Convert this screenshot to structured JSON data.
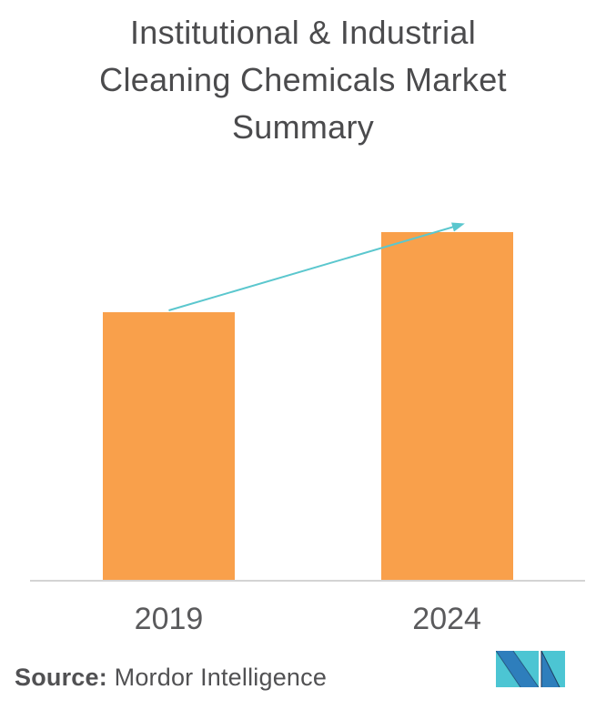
{
  "title": "Institutional & Industrial\nCleaning Chemicals Market\nSummary",
  "source": {
    "label": "Source:",
    "text": "Mordor Intelligence"
  },
  "logo": {
    "name": "Mordor Intelligence logo",
    "teal": "#4cc5d3",
    "blue": "#2e7ebc",
    "dark": "#16294a"
  },
  "chart_data": {
    "type": "bar",
    "title": "Institutional & Industrial Cleaning Chemicals Market Summary",
    "categories": [
      "2019",
      "2024"
    ],
    "values": [
      77,
      100
    ],
    "value_scale": "relative bar heights; no numeric y-axis shown in figure",
    "xlabel": "",
    "ylabel": "",
    "ylim": [
      0,
      112
    ],
    "grid": false,
    "legend": false,
    "bar_color": "#f9a04b",
    "axis_line_color": "#d4d4d4",
    "tick_label_color": "#5a5a5c",
    "trend_arrow": {
      "color": "#5bc7ce",
      "from": "2019",
      "to": "2024",
      "direction": "up-right"
    }
  }
}
